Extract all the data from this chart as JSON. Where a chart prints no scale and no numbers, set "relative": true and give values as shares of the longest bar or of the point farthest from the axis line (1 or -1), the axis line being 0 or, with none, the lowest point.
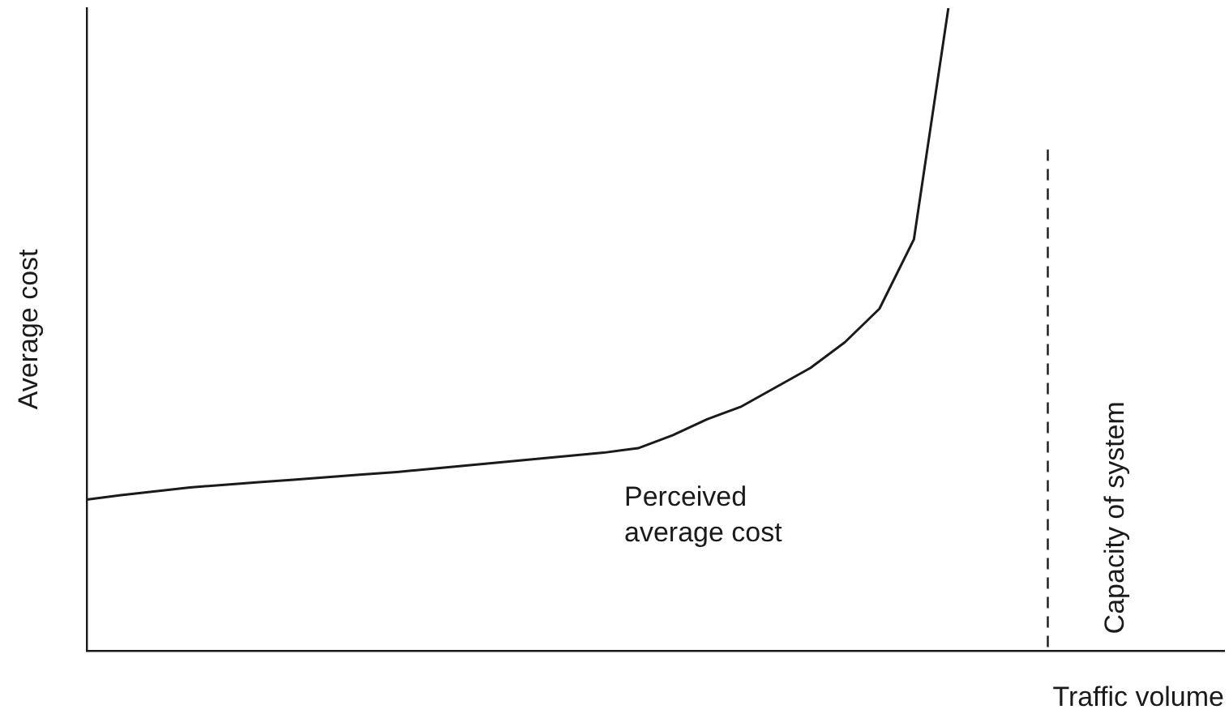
{
  "chart_data": {
    "type": "line",
    "relative": true,
    "xlabel": "Traffic volume",
    "ylabel": "Average cost",
    "grid": false,
    "legend": false,
    "marker": "none",
    "line_style": "solid",
    "categories": [
      null,
      null,
      null,
      null,
      null,
      null,
      null,
      null,
      null,
      null,
      null,
      null,
      null,
      null,
      null,
      null,
      null,
      null,
      null,
      null,
      null,
      null,
      null,
      null,
      null,
      null,
      null,
      null,
      null,
      null,
      null,
      null,
      null,
      null
    ],
    "series": [
      {
        "color": "#1a1a1a",
        "values": [
          0.235,
          0.242,
          0.248,
          0.254,
          0.258,
          0.262,
          0.266,
          0.27,
          0.274,
          0.278,
          0.283,
          0.288,
          0.293,
          0.298,
          0.303,
          0.308,
          0.315,
          0.335,
          0.36,
          0.38,
          0.41,
          0.44,
          0.48,
          0.532,
          0.64,
          1,
          null,
          null,
          null,
          null,
          null,
          null,
          null,
          null
        ]
      }
    ],
    "annotations": [
      "Perceived average cost",
      "Capacity of system"
    ]
  }
}
